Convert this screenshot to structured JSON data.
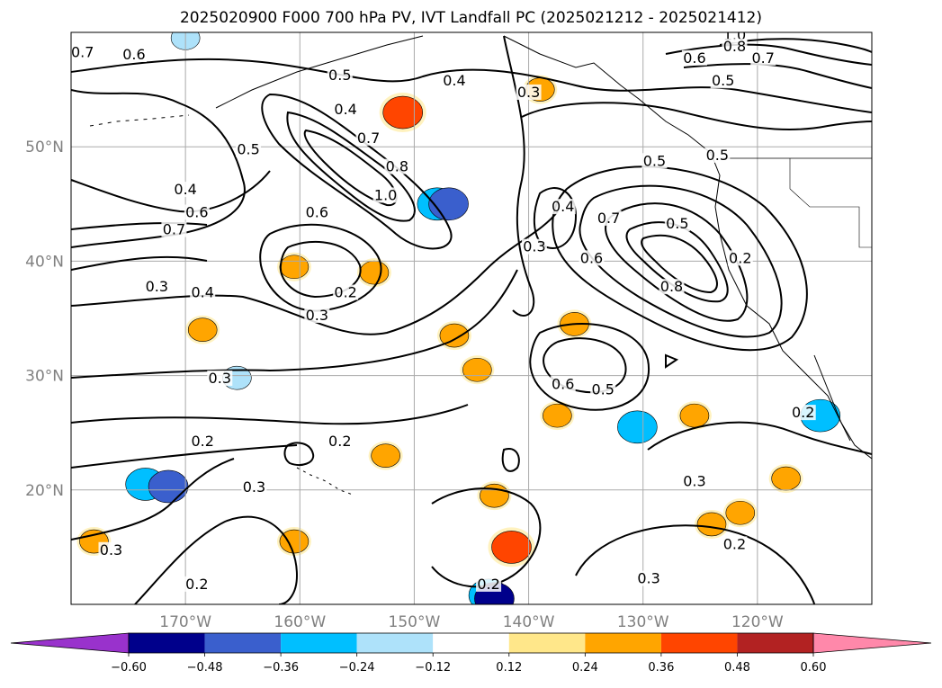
{
  "chart_data": {
    "type": "heatmap",
    "title": "2025020900 F000 700 hPa PV, IVT Landfall PC (2025021212 - 2025021412)",
    "projection": "PlateCarree",
    "xlim": [
      -180,
      -110
    ],
    "ylim": [
      10,
      60
    ],
    "grid": true,
    "lat_ticks": [
      {
        "value": 20,
        "label": "20°N"
      },
      {
        "value": 30,
        "label": "30°N"
      },
      {
        "value": 40,
        "label": "40°N"
      },
      {
        "value": 50,
        "label": "50°N"
      }
    ],
    "lon_ticks": [
      {
        "value": -170,
        "label": "170°W"
      },
      {
        "value": -160,
        "label": "160°W"
      },
      {
        "value": -150,
        "label": "150°W"
      },
      {
        "value": -140,
        "label": "140°W"
      },
      {
        "value": -130,
        "label": "130°W"
      },
      {
        "value": -120,
        "label": "120°W"
      }
    ],
    "contour_variable": "700 hPa PV",
    "contour_levels": [
      0.2,
      0.3,
      0.4,
      0.5,
      0.6,
      0.7,
      0.8,
      1.0
    ],
    "contour_labels": [
      {
        "lon": -174.5,
        "lat": 57.8,
        "text": "0.6"
      },
      {
        "lon": -179.0,
        "lat": 58.0,
        "text": "0.7"
      },
      {
        "lon": -170.0,
        "lat": 46.0,
        "text": "0.4"
      },
      {
        "lon": -164.5,
        "lat": 49.5,
        "text": "0.5"
      },
      {
        "lon": -156.5,
        "lat": 56.0,
        "text": "0.5"
      },
      {
        "lon": -156.0,
        "lat": 53.0,
        "text": "0.4"
      },
      {
        "lon": -154.0,
        "lat": 50.5,
        "text": "0.7"
      },
      {
        "lon": -151.5,
        "lat": 48.0,
        "text": "0.8"
      },
      {
        "lon": -152.5,
        "lat": 45.5,
        "text": "1.0"
      },
      {
        "lon": -169.0,
        "lat": 44.0,
        "text": "0.6"
      },
      {
        "lon": -171.0,
        "lat": 42.5,
        "text": "0.7"
      },
      {
        "lon": -158.5,
        "lat": 44.0,
        "text": "0.6"
      },
      {
        "lon": -172.5,
        "lat": 37.5,
        "text": "0.3"
      },
      {
        "lon": -168.5,
        "lat": 37.0,
        "text": "0.4"
      },
      {
        "lon": -156.0,
        "lat": 37.0,
        "text": "0.2"
      },
      {
        "lon": -158.5,
        "lat": 35.0,
        "text": "0.3"
      },
      {
        "lon": -146.5,
        "lat": 55.5,
        "text": "0.4"
      },
      {
        "lon": -140.0,
        "lat": 54.5,
        "text": "0.3"
      },
      {
        "lon": -139.5,
        "lat": 41.0,
        "text": "0.3"
      },
      {
        "lon": -137.0,
        "lat": 44.5,
        "text": "0.4"
      },
      {
        "lon": -133.0,
        "lat": 43.5,
        "text": "0.7"
      },
      {
        "lon": -134.5,
        "lat": 40.0,
        "text": "0.6"
      },
      {
        "lon": -129.0,
        "lat": 48.5,
        "text": "0.5"
      },
      {
        "lon": -127.0,
        "lat": 43.0,
        "text": "0.5"
      },
      {
        "lon": -127.5,
        "lat": 37.5,
        "text": "0.8"
      },
      {
        "lon": -123.5,
        "lat": 49.0,
        "text": "0.5"
      },
      {
        "lon": -121.5,
        "lat": 40.0,
        "text": "0.2"
      },
      {
        "lon": -125.5,
        "lat": 57.5,
        "text": "0.6"
      },
      {
        "lon": -123.0,
        "lat": 55.5,
        "text": "0.5"
      },
      {
        "lon": -122.0,
        "lat": 59.5,
        "text": "1.0"
      },
      {
        "lon": -122.0,
        "lat": 58.5,
        "text": "0.8"
      },
      {
        "lon": -119.5,
        "lat": 57.5,
        "text": "0.7"
      },
      {
        "lon": -167.0,
        "lat": 29.5,
        "text": "0.3"
      },
      {
        "lon": -168.5,
        "lat": 24.0,
        "text": "0.2"
      },
      {
        "lon": -156.5,
        "lat": 24.0,
        "text": "0.2"
      },
      {
        "lon": -164.0,
        "lat": 20.0,
        "text": "0.3"
      },
      {
        "lon": -176.5,
        "lat": 14.5,
        "text": "0.3"
      },
      {
        "lon": -169.0,
        "lat": 11.5,
        "text": "0.2"
      },
      {
        "lon": -137.0,
        "lat": 29.0,
        "text": "0.6"
      },
      {
        "lon": -133.5,
        "lat": 28.5,
        "text": "0.5"
      },
      {
        "lon": -143.5,
        "lat": 11.5,
        "text": "0.2"
      },
      {
        "lon": -129.5,
        "lat": 12.0,
        "text": "0.3"
      },
      {
        "lon": -125.5,
        "lat": 20.5,
        "text": "0.3"
      },
      {
        "lon": -122.0,
        "lat": 15.0,
        "text": "0.2"
      },
      {
        "lon": -116.0,
        "lat": 26.5,
        "text": "0.2"
      }
    ],
    "shading_variable": "IVT Landfall PC",
    "colorbar": {
      "levels": [
        -0.6,
        -0.48,
        -0.36,
        -0.24,
        -0.12,
        0.12,
        0.24,
        0.36,
        0.48,
        0.6
      ],
      "tick_labels": [
        "−0.60",
        "−0.48",
        "−0.36",
        "−0.24",
        "−0.12",
        "0.12",
        "0.24",
        "0.36",
        "0.48",
        "0.60"
      ],
      "colors": [
        "#9932cc",
        "#00008b",
        "#3a5fcd",
        "#00bfff",
        "#aee2fa",
        "#ffffff",
        "#ffe78a",
        "#ffa500",
        "#ff4500",
        "#b22222",
        "#ff88aa"
      ],
      "extend": "both"
    },
    "shaded_regions": [
      {
        "lon": -173.5,
        "lat": 20.5,
        "value": -0.36
      },
      {
        "lon": -171.5,
        "lat": 20.3,
        "value": -0.48
      },
      {
        "lon": -148.0,
        "lat": 45.0,
        "value": -0.36
      },
      {
        "lon": -147.0,
        "lat": 45.0,
        "value": -0.48
      },
      {
        "lon": -143.5,
        "lat": 10.8,
        "value": -0.36
      },
      {
        "lon": -143.0,
        "lat": 10.5,
        "value": -0.6
      },
      {
        "lon": -130.5,
        "lat": 25.5,
        "value": -0.36
      },
      {
        "lon": -114.5,
        "lat": 26.5,
        "value": -0.36
      },
      {
        "lon": -170.0,
        "lat": 59.5,
        "value": -0.24
      },
      {
        "lon": -165.5,
        "lat": 29.8,
        "value": -0.24
      },
      {
        "lon": -151.0,
        "lat": 53.0,
        "value": 0.36
      },
      {
        "lon": -139.0,
        "lat": 55.0,
        "value": 0.24
      },
      {
        "lon": -168.5,
        "lat": 34.0,
        "value": 0.24
      },
      {
        "lon": -160.5,
        "lat": 39.5,
        "value": 0.24
      },
      {
        "lon": -153.5,
        "lat": 39.0,
        "value": 0.24
      },
      {
        "lon": -146.5,
        "lat": 33.5,
        "value": 0.24
      },
      {
        "lon": -144.5,
        "lat": 30.5,
        "value": 0.24
      },
      {
        "lon": -136.0,
        "lat": 34.5,
        "value": 0.24
      },
      {
        "lon": -137.5,
        "lat": 26.5,
        "value": 0.24
      },
      {
        "lon": -152.5,
        "lat": 23.0,
        "value": 0.24
      },
      {
        "lon": -143.0,
        "lat": 19.5,
        "value": 0.24
      },
      {
        "lon": -141.5,
        "lat": 15.0,
        "value": 0.36
      },
      {
        "lon": -178.0,
        "lat": 15.5,
        "value": 0.24
      },
      {
        "lon": -160.5,
        "lat": 15.5,
        "value": 0.24
      },
      {
        "lon": -125.5,
        "lat": 26.5,
        "value": 0.24
      },
      {
        "lon": -117.5,
        "lat": 21.0,
        "value": 0.24
      },
      {
        "lon": -121.5,
        "lat": 18.0,
        "value": 0.24
      },
      {
        "lon": -124.0,
        "lat": 17.0,
        "value": 0.24
      }
    ]
  }
}
